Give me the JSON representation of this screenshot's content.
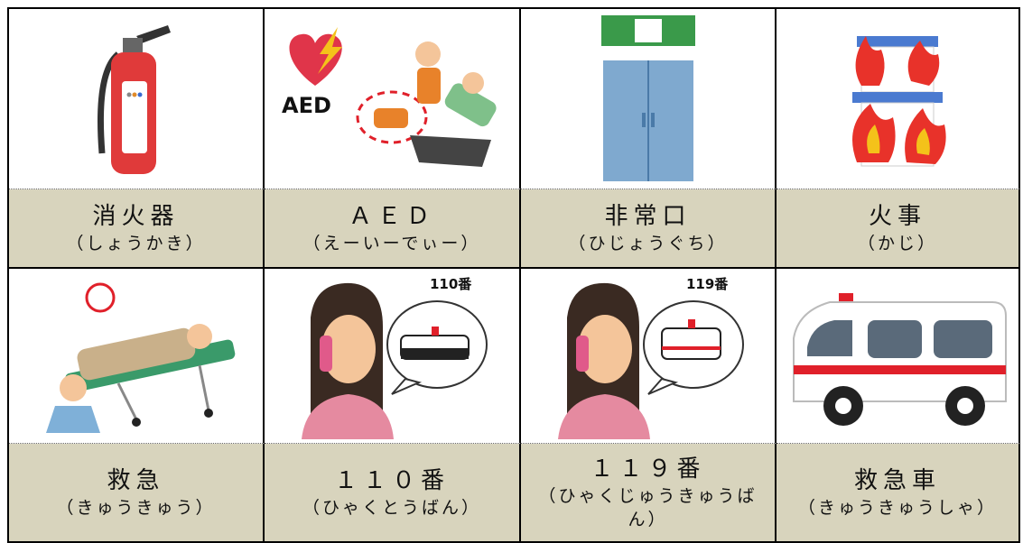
{
  "cards": [
    {
      "word": "消火器",
      "reading": "（しょうかき）"
    },
    {
      "word": "ＡＥＤ",
      "reading": "（えーいーでぃー）",
      "icon_text": "AED"
    },
    {
      "word": "非常口",
      "reading": "（ひじょうぐち）"
    },
    {
      "word": "火事",
      "reading": "（かじ）"
    },
    {
      "word": "救急",
      "reading": "（きゅうきゅう）"
    },
    {
      "word": "１１０番",
      "reading": "（ひゃくとうばん）",
      "icon_text": "110番"
    },
    {
      "word": "１１９番",
      "reading": "（ひゃくじゅうきゅうばん）",
      "icon_text": "119番"
    },
    {
      "word": "救急車",
      "reading": "（きゅうきゅうしゃ）"
    }
  ]
}
